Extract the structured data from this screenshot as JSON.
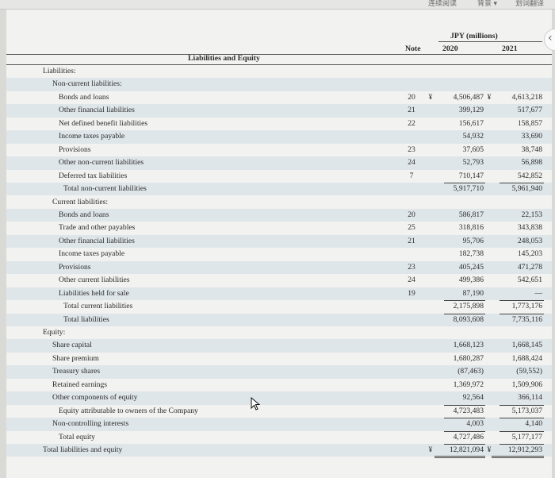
{
  "toolbar": {
    "items": [
      "连续阅读",
      "背景 ▾",
      "划词翻译"
    ]
  },
  "header": {
    "currency_label": "JPY (millions)",
    "note_label": "Note",
    "year1": "2020",
    "year2": "2021",
    "section_title": "Liabilities and Equity"
  },
  "rows": [
    {
      "label": "Liabilities:",
      "note": "",
      "y1": "",
      "y2": "",
      "indent": 0
    },
    {
      "label": "Non-current liabilities:",
      "note": "",
      "y1": "",
      "y2": "",
      "indent": 1
    },
    {
      "label": "Bonds and loans",
      "note": "20",
      "y1": "4,506,487",
      "y2": "4,613,218",
      "indent": 2,
      "yen": true
    },
    {
      "label": "Other financial liabilities",
      "note": "21",
      "y1": "399,129",
      "y2": "517,677",
      "indent": 2
    },
    {
      "label": "Net defined benefit liabilities",
      "note": "22",
      "y1": "156,617",
      "y2": "158,857",
      "indent": 2
    },
    {
      "label": "Income taxes payable",
      "note": "",
      "y1": "54,932",
      "y2": "33,690",
      "indent": 2
    },
    {
      "label": "Provisions",
      "note": "23",
      "y1": "37,605",
      "y2": "38,748",
      "indent": 2
    },
    {
      "label": "Other non-current liabilities",
      "note": "24",
      "y1": "52,793",
      "y2": "56,898",
      "indent": 2
    },
    {
      "label": "Deferred tax liabilities",
      "note": "7",
      "y1": "710,147",
      "y2": "542,852",
      "indent": 2
    },
    {
      "label": "Total non-current liabilities",
      "note": "",
      "y1": "5,917,710",
      "y2": "5,961,940",
      "indent": 3
    },
    {
      "label": "Current liabilities:",
      "note": "",
      "y1": "",
      "y2": "",
      "indent": 1
    },
    {
      "label": "Bonds and loans",
      "note": "20",
      "y1": "586,817",
      "y2": "22,153",
      "indent": 2
    },
    {
      "label": "Trade and other payables",
      "note": "25",
      "y1": "318,816",
      "y2": "343,838",
      "indent": 2
    },
    {
      "label": "Other financial liabilities",
      "note": "21",
      "y1": "95,706",
      "y2": "248,053",
      "indent": 2
    },
    {
      "label": "Income taxes payable",
      "note": "",
      "y1": "182,738",
      "y2": "145,203",
      "indent": 2
    },
    {
      "label": "Provisions",
      "note": "23",
      "y1": "405,245",
      "y2": "471,278",
      "indent": 2
    },
    {
      "label": "Other current liabilities",
      "note": "24",
      "y1": "499,386",
      "y2": "542,651",
      "indent": 2
    },
    {
      "label": "Liabilities held for sale",
      "note": "19",
      "y1": "87,190",
      "y2": "—",
      "indent": 2
    },
    {
      "label": "Total current liabilities",
      "note": "",
      "y1": "2,175,898",
      "y2": "1,773,176",
      "indent": 3
    },
    {
      "label": "Total liabilities",
      "note": "",
      "y1": "8,093,608",
      "y2": "7,735,116",
      "indent": 3
    },
    {
      "label": "Equity:",
      "note": "",
      "y1": "",
      "y2": "",
      "indent": 0
    },
    {
      "label": "Share capital",
      "note": "",
      "y1": "1,668,123",
      "y2": "1,668,145",
      "indent": 1
    },
    {
      "label": "Share premium",
      "note": "",
      "y1": "1,680,287",
      "y2": "1,688,424",
      "indent": 1
    },
    {
      "label": "Treasury shares",
      "note": "",
      "y1": "(87,463)",
      "y2": "(59,552)",
      "indent": 1
    },
    {
      "label": "Retained earnings",
      "note": "",
      "y1": "1,369,972",
      "y2": "1,509,906",
      "indent": 1
    },
    {
      "label": "Other components of equity",
      "note": "",
      "y1": "92,564",
      "y2": "366,114",
      "indent": 1
    },
    {
      "label": "Equity attributable to owners of the Company",
      "note": "",
      "y1": "4,723,483",
      "y2": "5,173,037",
      "indent": 2
    },
    {
      "label": "Non-controlling interests",
      "note": "",
      "y1": "4,003",
      "y2": "4,140",
      "indent": 1
    },
    {
      "label": "Total equity",
      "note": "",
      "y1": "4,727,486",
      "y2": "5,177,177",
      "indent": 2
    },
    {
      "label": "Total liabilities and equity",
      "note": "",
      "y1": "12,821,094",
      "y2": "12,912,293",
      "indent": 0,
      "yen": true
    }
  ],
  "yen_symbol": "¥",
  "side_handle_icon": "‹",
  "colors": {
    "band": "#dfe6ea",
    "paper": "#f2f2f0"
  }
}
